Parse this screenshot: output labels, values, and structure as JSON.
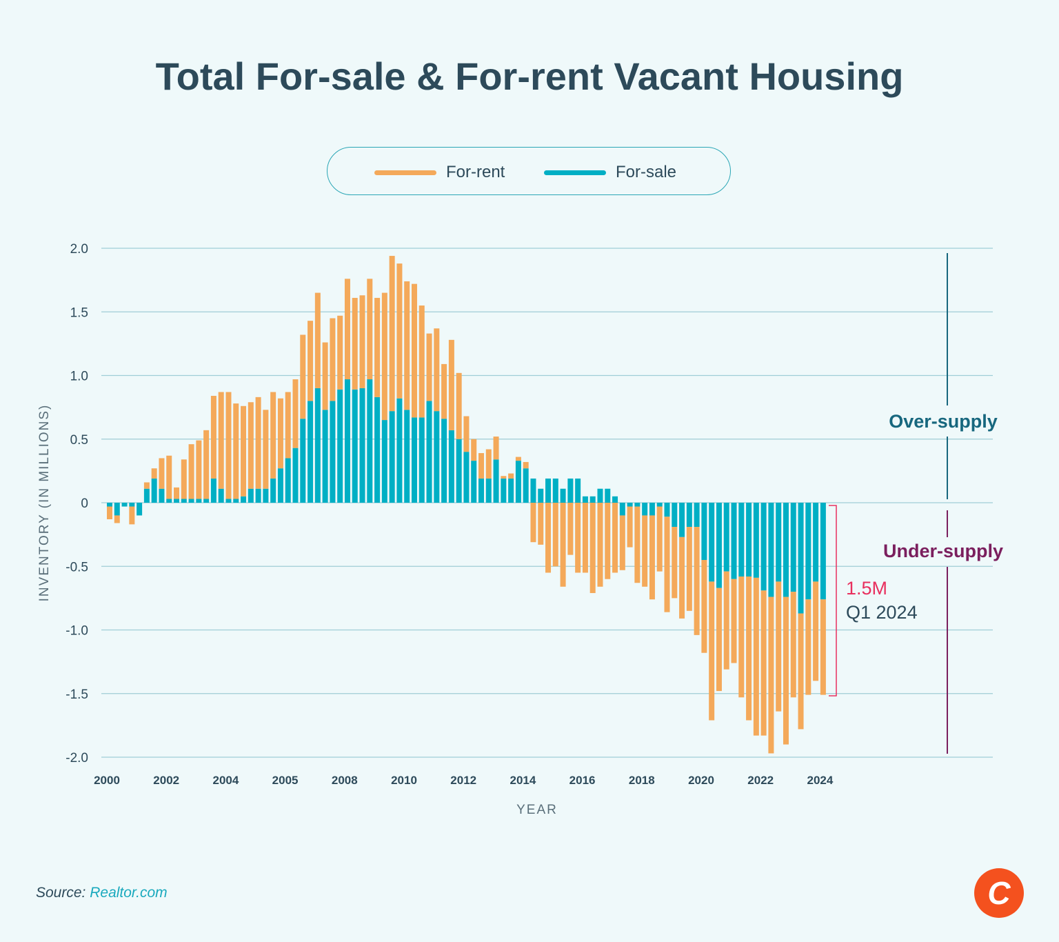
{
  "title": "Total For-sale & For-rent Vacant Housing",
  "legend": [
    {
      "label": "For-rent",
      "color": "#f4a95a"
    },
    {
      "label": "For-sale",
      "color": "#00afc4"
    }
  ],
  "source": {
    "label": "Source:",
    "link": "Realtor.com"
  },
  "logo": {
    "letter": "C",
    "color": "#f4511e"
  },
  "annotations": {
    "over_supply": "Over-supply",
    "under_supply": "Under-supply",
    "gap_value": "1.5M",
    "gap_period": "Q1 2024",
    "over_color": "#17677e",
    "under_color": "#7b1f5e",
    "gap_color": "#e8305e"
  },
  "chart_data": {
    "type": "bar",
    "stacked": true,
    "title": "Total For-sale & For-rent Vacant Housing",
    "xlabel": "YEAR",
    "ylabel": "INVENTORY (IN MILLIONS)",
    "ylim": [
      -2.0,
      2.0
    ],
    "yticks": [
      "2.0",
      "1.5",
      "1.0",
      "0.5",
      "0",
      "-0.5",
      "-1.0",
      "-1.5",
      "-2.0"
    ],
    "ytick_values": [
      2.0,
      1.5,
      1.0,
      0.5,
      0,
      -0.5,
      -1.0,
      -1.5,
      -2.0
    ],
    "xtick_labels": [
      "2000",
      "2002",
      "2004",
      "2005",
      "2008",
      "2010",
      "2012",
      "2014",
      "2016",
      "2018",
      "2020",
      "2022",
      "2024"
    ],
    "grid": true,
    "legend_position": "top-center",
    "x_period": "quarterly, 2000 Q1 to 2024 Q1",
    "series": [
      {
        "name": "For-sale",
        "color": "#00afc4",
        "values": [
          -0.03,
          -0.1,
          -0.03,
          -0.03,
          -0.1,
          0.11,
          0.19,
          0.11,
          0.03,
          0.03,
          0.03,
          0.03,
          0.03,
          0.03,
          0.19,
          0.11,
          0.03,
          0.03,
          0.05,
          0.11,
          0.11,
          0.11,
          0.19,
          0.27,
          0.35,
          0.43,
          0.66,
          0.8,
          0.9,
          0.73,
          0.8,
          0.89,
          0.97,
          0.89,
          0.9,
          0.97,
          0.83,
          0.65,
          0.72,
          0.82,
          0.73,
          0.67,
          0.67,
          0.8,
          0.72,
          0.66,
          0.57,
          0.5,
          0.4,
          0.33,
          0.19,
          0.19,
          0.34,
          0.19,
          0.19,
          0.33,
          0.27,
          0.19,
          0.11,
          0.19,
          0.19,
          0.11,
          0.19,
          0.19,
          0.05,
          0.05,
          0.11,
          0.11,
          0.05,
          -0.1,
          -0.03,
          -0.03,
          -0.1,
          -0.1,
          -0.03,
          -0.11,
          -0.19,
          -0.27,
          -0.19,
          -0.19,
          -0.45,
          -0.62,
          -0.67,
          -0.54,
          -0.6,
          -0.58,
          -0.58,
          -0.59,
          -0.69,
          -0.74,
          -0.62,
          -0.74,
          -0.7,
          -0.87,
          -0.76,
          -0.62,
          -0.76
        ]
      },
      {
        "name": "For-rent",
        "color": "#f4a95a",
        "values": [
          -0.1,
          -0.06,
          0,
          -0.14,
          0,
          0.05,
          0.08,
          0.24,
          0.34,
          0.09,
          0.31,
          0.43,
          0.46,
          0.54,
          0.65,
          0.76,
          0.84,
          0.75,
          0.71,
          0.68,
          0.72,
          0.62,
          0.68,
          0.55,
          0.52,
          0.54,
          0.66,
          0.63,
          0.75,
          0.53,
          0.65,
          0.58,
          0.79,
          0.72,
          0.73,
          0.79,
          0.78,
          1.0,
          1.22,
          1.06,
          1.01,
          1.05,
          0.88,
          0.53,
          0.65,
          0.43,
          0.71,
          0.52,
          0.28,
          0.17,
          0.2,
          0.23,
          0.18,
          0.02,
          0.04,
          0.03,
          0.05,
          -0.31,
          -0.33,
          -0.55,
          -0.5,
          -0.66,
          -0.41,
          -0.55,
          -0.55,
          -0.71,
          -0.66,
          -0.6,
          -0.55,
          -0.43,
          -0.32,
          -0.6,
          -0.56,
          -0.66,
          -0.51,
          -0.75,
          -0.56,
          -0.64,
          -0.66,
          -0.85,
          -0.73,
          -1.09,
          -0.81,
          -0.77,
          -0.66,
          -0.95,
          -1.13,
          -1.24,
          -1.14,
          -1.23,
          -1.02,
          -1.16,
          -0.83,
          -0.91,
          -0.75,
          -0.78,
          -0.75
        ]
      }
    ]
  }
}
